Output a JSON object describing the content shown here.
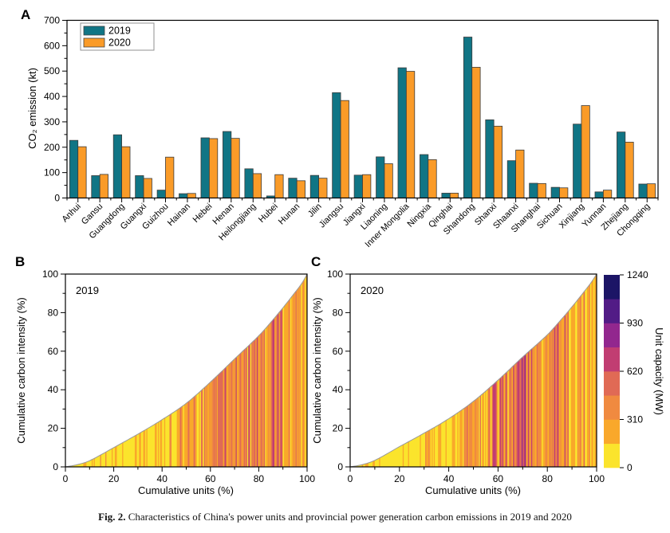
{
  "caption": {
    "label": "Fig. 2.",
    "text": " Characteristics of China's power units and provincial power generation carbon emissions in 2019 and 2020"
  },
  "panels": {
    "a": {
      "label": "A"
    },
    "b": {
      "label": "B"
    },
    "c": {
      "label": "C"
    }
  },
  "colors": {
    "series_2019": "#107585",
    "series_2020": "#fa9b28",
    "bar_edge": "#3c3c3c",
    "axis": "#000000",
    "curve_outline": "#999999",
    "legend_border": "#909090"
  },
  "colorbar": {
    "title": "Unit capacity (MW)",
    "ticks": [
      0,
      310,
      620,
      930,
      1240
    ],
    "min": 0,
    "max": 1240,
    "palette_bottom_to_top": [
      "#fbe42c",
      "#f9a82b",
      "#f08a40",
      "#e06a55",
      "#c13d72",
      "#92278e",
      "#521c86",
      "#1c1566"
    ]
  },
  "chart_data": [
    {
      "type": "bar",
      "panel": "A",
      "title": "",
      "ylabel": "CO₂ emission (kt)",
      "ylim": [
        0,
        700
      ],
      "ytick_step": 100,
      "legend_position": "top-left",
      "grid": false,
      "categories": [
        "Anhui",
        "Gansu",
        "Guangdong",
        "Guangxi",
        "Guizhou",
        "Hainan",
        "Hebei",
        "Henan",
        "Heilongjiang",
        "Hubei",
        "Hunan",
        "Jilin",
        "Jiangsu",
        "Jiangxi",
        "Liaoning",
        "Inner Mongolia",
        "Ningxia",
        "Qinghai",
        "Shandong",
        "Shanxi",
        "Shaanxi",
        "Shanghai",
        "Sichuan",
        "Xinjiang",
        "Yunnan",
        "Zhejiang",
        "Chongqing"
      ],
      "series": [
        {
          "name": "2019",
          "color": "#107585",
          "values": [
            227,
            88,
            249,
            88,
            31,
            17,
            237,
            262,
            115,
            8,
            78,
            89,
            415,
            90,
            162,
            513,
            171,
            19,
            634,
            308,
            147,
            58,
            42,
            291,
            24,
            260,
            55
          ]
        },
        {
          "name": "2020",
          "color": "#fa9b28",
          "values": [
            202,
            93,
            202,
            77,
            161,
            18,
            234,
            235,
            96,
            92,
            68,
            78,
            384,
            92,
            135,
            499,
            151,
            19,
            515,
            283,
            189,
            57,
            40,
            364,
            31,
            220,
            56
          ]
        }
      ]
    },
    {
      "type": "area",
      "panel": "B",
      "annotation": "2019",
      "xlabel": "Cumulative units (%)",
      "ylabel": "Cumulative carbon intensity (%)",
      "xlim": [
        0,
        100
      ],
      "ylim": [
        0,
        100
      ],
      "tick_step": 20,
      "curve_points": [
        [
          0,
          0
        ],
        [
          5,
          1.2
        ],
        [
          10,
          3.2
        ],
        [
          20,
          10
        ],
        [
          30,
          17
        ],
        [
          40,
          24.5
        ],
        [
          50,
          33
        ],
        [
          60,
          44
        ],
        [
          70,
          56
        ],
        [
          80,
          68
        ],
        [
          85,
          75
        ],
        [
          90,
          82.5
        ],
        [
          95,
          90.5
        ],
        [
          98,
          95.5
        ],
        [
          100,
          100
        ]
      ],
      "strip_seed": 20190,
      "strip_count": 230,
      "strip_color_bands": [
        {
          "upto": 0.06,
          "weights": [
            0.9,
            0.06,
            0.04,
            0,
            0,
            0,
            0,
            0
          ]
        },
        {
          "upto": 0.28,
          "weights": [
            0.82,
            0.16,
            0.02,
            0,
            0,
            0,
            0,
            0
          ]
        },
        {
          "upto": 0.46,
          "weights": [
            0.52,
            0.38,
            0.08,
            0.02,
            0,
            0,
            0,
            0
          ]
        },
        {
          "upto": 0.6,
          "weights": [
            0.15,
            0.48,
            0.25,
            0.1,
            0.02,
            0,
            0,
            0
          ]
        },
        {
          "upto": 0.76,
          "weights": [
            0.05,
            0.3,
            0.3,
            0.22,
            0.13,
            0,
            0,
            0
          ]
        },
        {
          "upto": 0.9,
          "weights": [
            0.04,
            0.34,
            0.34,
            0.18,
            0.1,
            0,
            0,
            0
          ]
        },
        {
          "upto": 1.01,
          "weights": [
            0.18,
            0.44,
            0.28,
            0.08,
            0.02,
            0,
            0,
            0
          ]
        }
      ]
    },
    {
      "type": "area",
      "panel": "C",
      "annotation": "2020",
      "xlabel": "Cumulative units (%)",
      "ylabel": "Cumulative carbon intensity (%)",
      "xlim": [
        0,
        100
      ],
      "ylim": [
        0,
        100
      ],
      "tick_step": 20,
      "curve_points": [
        [
          0,
          0
        ],
        [
          5,
          1.2
        ],
        [
          10,
          3.4
        ],
        [
          20,
          10.5
        ],
        [
          30,
          17.5
        ],
        [
          40,
          25
        ],
        [
          50,
          34
        ],
        [
          60,
          45
        ],
        [
          70,
          57
        ],
        [
          80,
          68.5
        ],
        [
          85,
          75.5
        ],
        [
          90,
          83
        ],
        [
          95,
          91
        ],
        [
          98,
          96
        ],
        [
          100,
          100
        ]
      ],
      "strip_seed": 20200,
      "strip_count": 230,
      "strip_color_bands": [
        {
          "upto": 0.06,
          "weights": [
            0.9,
            0.06,
            0.04,
            0,
            0,
            0,
            0,
            0
          ]
        },
        {
          "upto": 0.28,
          "weights": [
            0.8,
            0.18,
            0.02,
            0,
            0,
            0,
            0,
            0
          ]
        },
        {
          "upto": 0.44,
          "weights": [
            0.5,
            0.4,
            0.08,
            0.02,
            0,
            0,
            0,
            0
          ]
        },
        {
          "upto": 0.58,
          "weights": [
            0.14,
            0.48,
            0.26,
            0.1,
            0.02,
            0,
            0,
            0
          ]
        },
        {
          "upto": 0.66,
          "weights": [
            0.04,
            0.3,
            0.32,
            0.22,
            0.12,
            0,
            0,
            0
          ]
        },
        {
          "upto": 0.73,
          "weights": [
            0.02,
            0.22,
            0.26,
            0.22,
            0.14,
            0.08,
            0.04,
            0.02
          ]
        },
        {
          "upto": 0.88,
          "weights": [
            0.04,
            0.32,
            0.34,
            0.2,
            0.1,
            0,
            0,
            0
          ]
        },
        {
          "upto": 1.01,
          "weights": [
            0.16,
            0.46,
            0.3,
            0.08,
            0,
            0,
            0,
            0
          ]
        }
      ]
    }
  ]
}
